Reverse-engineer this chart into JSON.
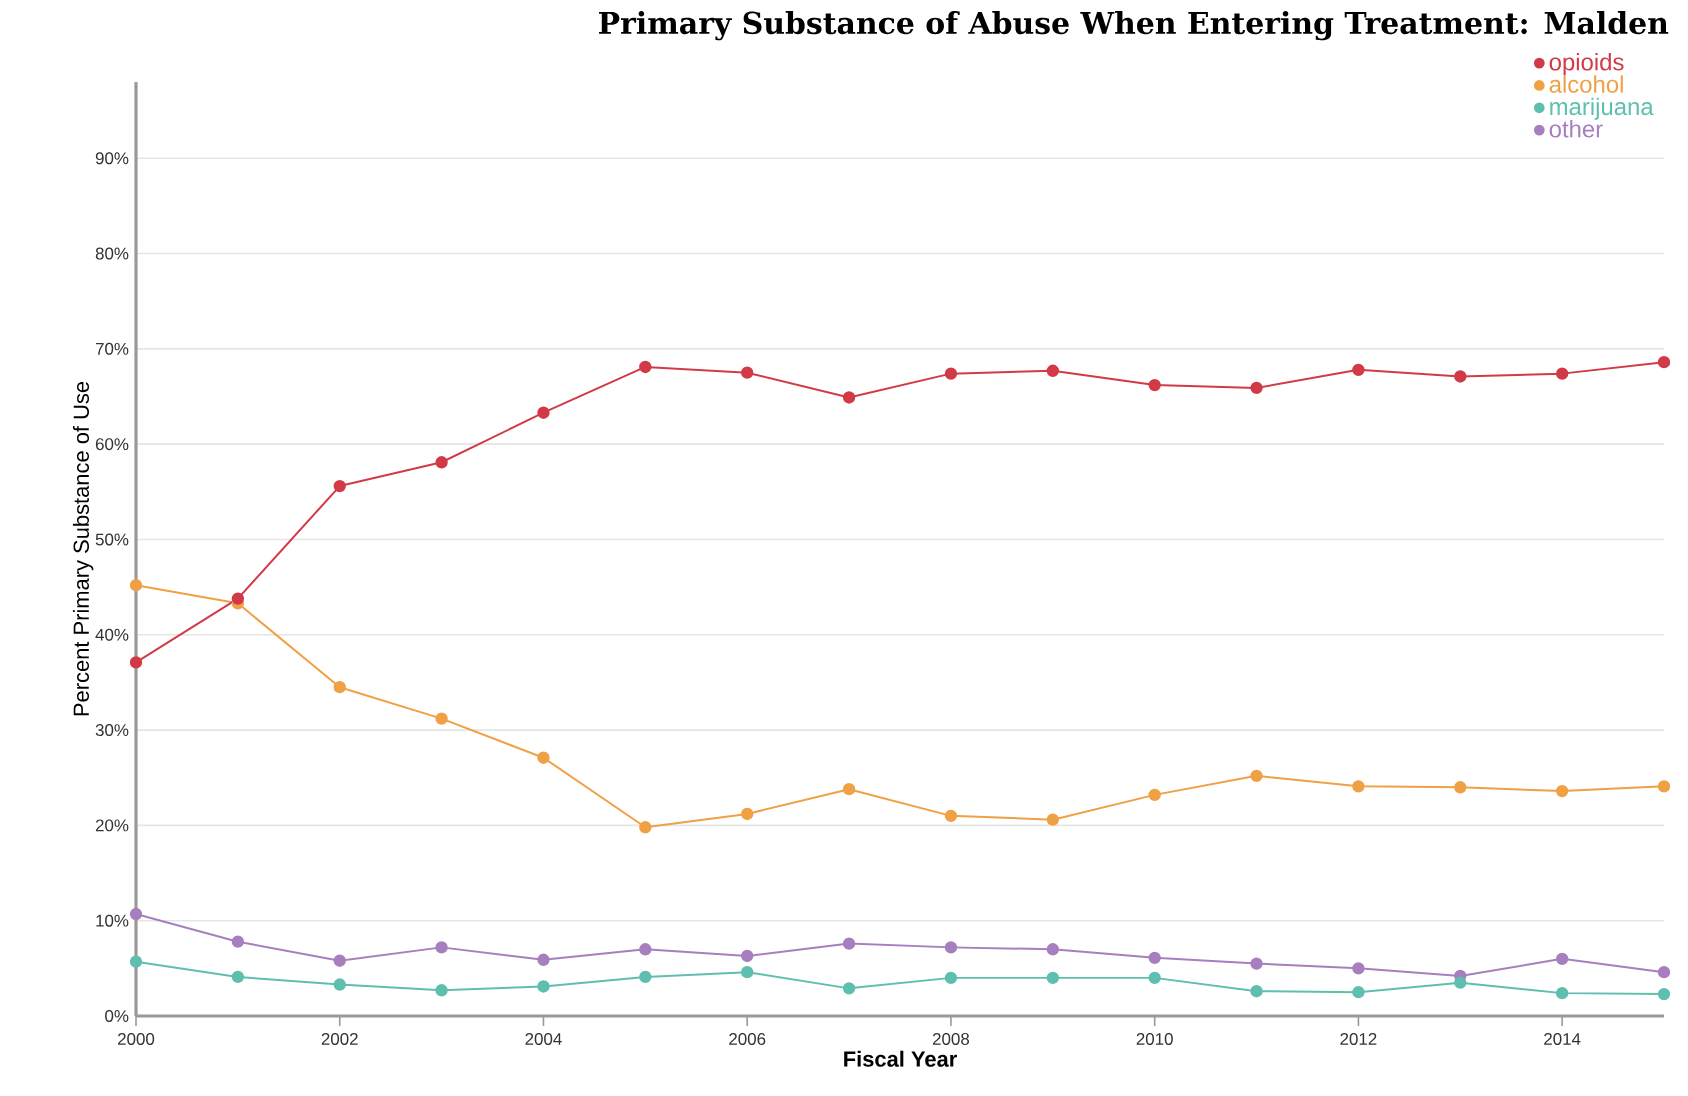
{
  "chart_data": {
    "type": "line",
    "title": "Primary Substance of Abuse When Entering Treatment: Malden",
    "xlabel": "Fiscal Year",
    "ylabel": "Percent Primary Substance of Use",
    "x": [
      2000,
      2001,
      2002,
      2003,
      2004,
      2005,
      2006,
      2007,
      2008,
      2009,
      2010,
      2011,
      2012,
      2013,
      2014,
      2015
    ],
    "series": [
      {
        "name": "opioids",
        "color": "#d13a46",
        "values": [
          37.1,
          43.8,
          55.6,
          58.1,
          63.3,
          68.1,
          67.5,
          64.9,
          67.4,
          67.7,
          66.2,
          65.9,
          67.8,
          67.1,
          67.4,
          68.6
        ]
      },
      {
        "name": "alcohol",
        "color": "#f0a045",
        "values": [
          45.2,
          43.3,
          34.5,
          31.2,
          27.1,
          19.8,
          21.2,
          23.8,
          21.0,
          20.6,
          23.2,
          25.2,
          24.1,
          24.0,
          23.6,
          24.1
        ]
      },
      {
        "name": "marijuana",
        "color": "#5fbfae",
        "values": [
          5.7,
          4.1,
          3.3,
          2.7,
          3.1,
          4.1,
          4.6,
          2.9,
          4.0,
          4.0,
          4.0,
          2.6,
          2.5,
          3.5,
          2.4,
          2.3
        ]
      },
      {
        "name": "other",
        "color": "#a77fbf",
        "values": [
          10.7,
          7.8,
          5.8,
          7.2,
          5.9,
          7.0,
          6.3,
          7.6,
          7.2,
          7.0,
          6.1,
          5.5,
          5.0,
          4.2,
          6.0,
          4.6
        ]
      }
    ],
    "xlim": [
      2000,
      2015
    ],
    "ylim": [
      0,
      98
    ],
    "xticks": [
      2000,
      2002,
      2004,
      2006,
      2008,
      2010,
      2012,
      2014
    ],
    "yticks": [
      {
        "value": 0,
        "label": "0%"
      },
      {
        "value": 10,
        "label": "10%"
      },
      {
        "value": 20,
        "label": "20%"
      },
      {
        "value": 30,
        "label": "30%"
      },
      {
        "value": 40,
        "label": "40%"
      },
      {
        "value": 50,
        "label": "50%"
      },
      {
        "value": 60,
        "label": "60%"
      },
      {
        "value": 70,
        "label": "70%"
      },
      {
        "value": 80,
        "label": "80%"
      },
      {
        "value": 90,
        "label": "90%"
      }
    ],
    "grid": "y",
    "legend": "top right",
    "marker": "circle",
    "line_style": "solid"
  }
}
